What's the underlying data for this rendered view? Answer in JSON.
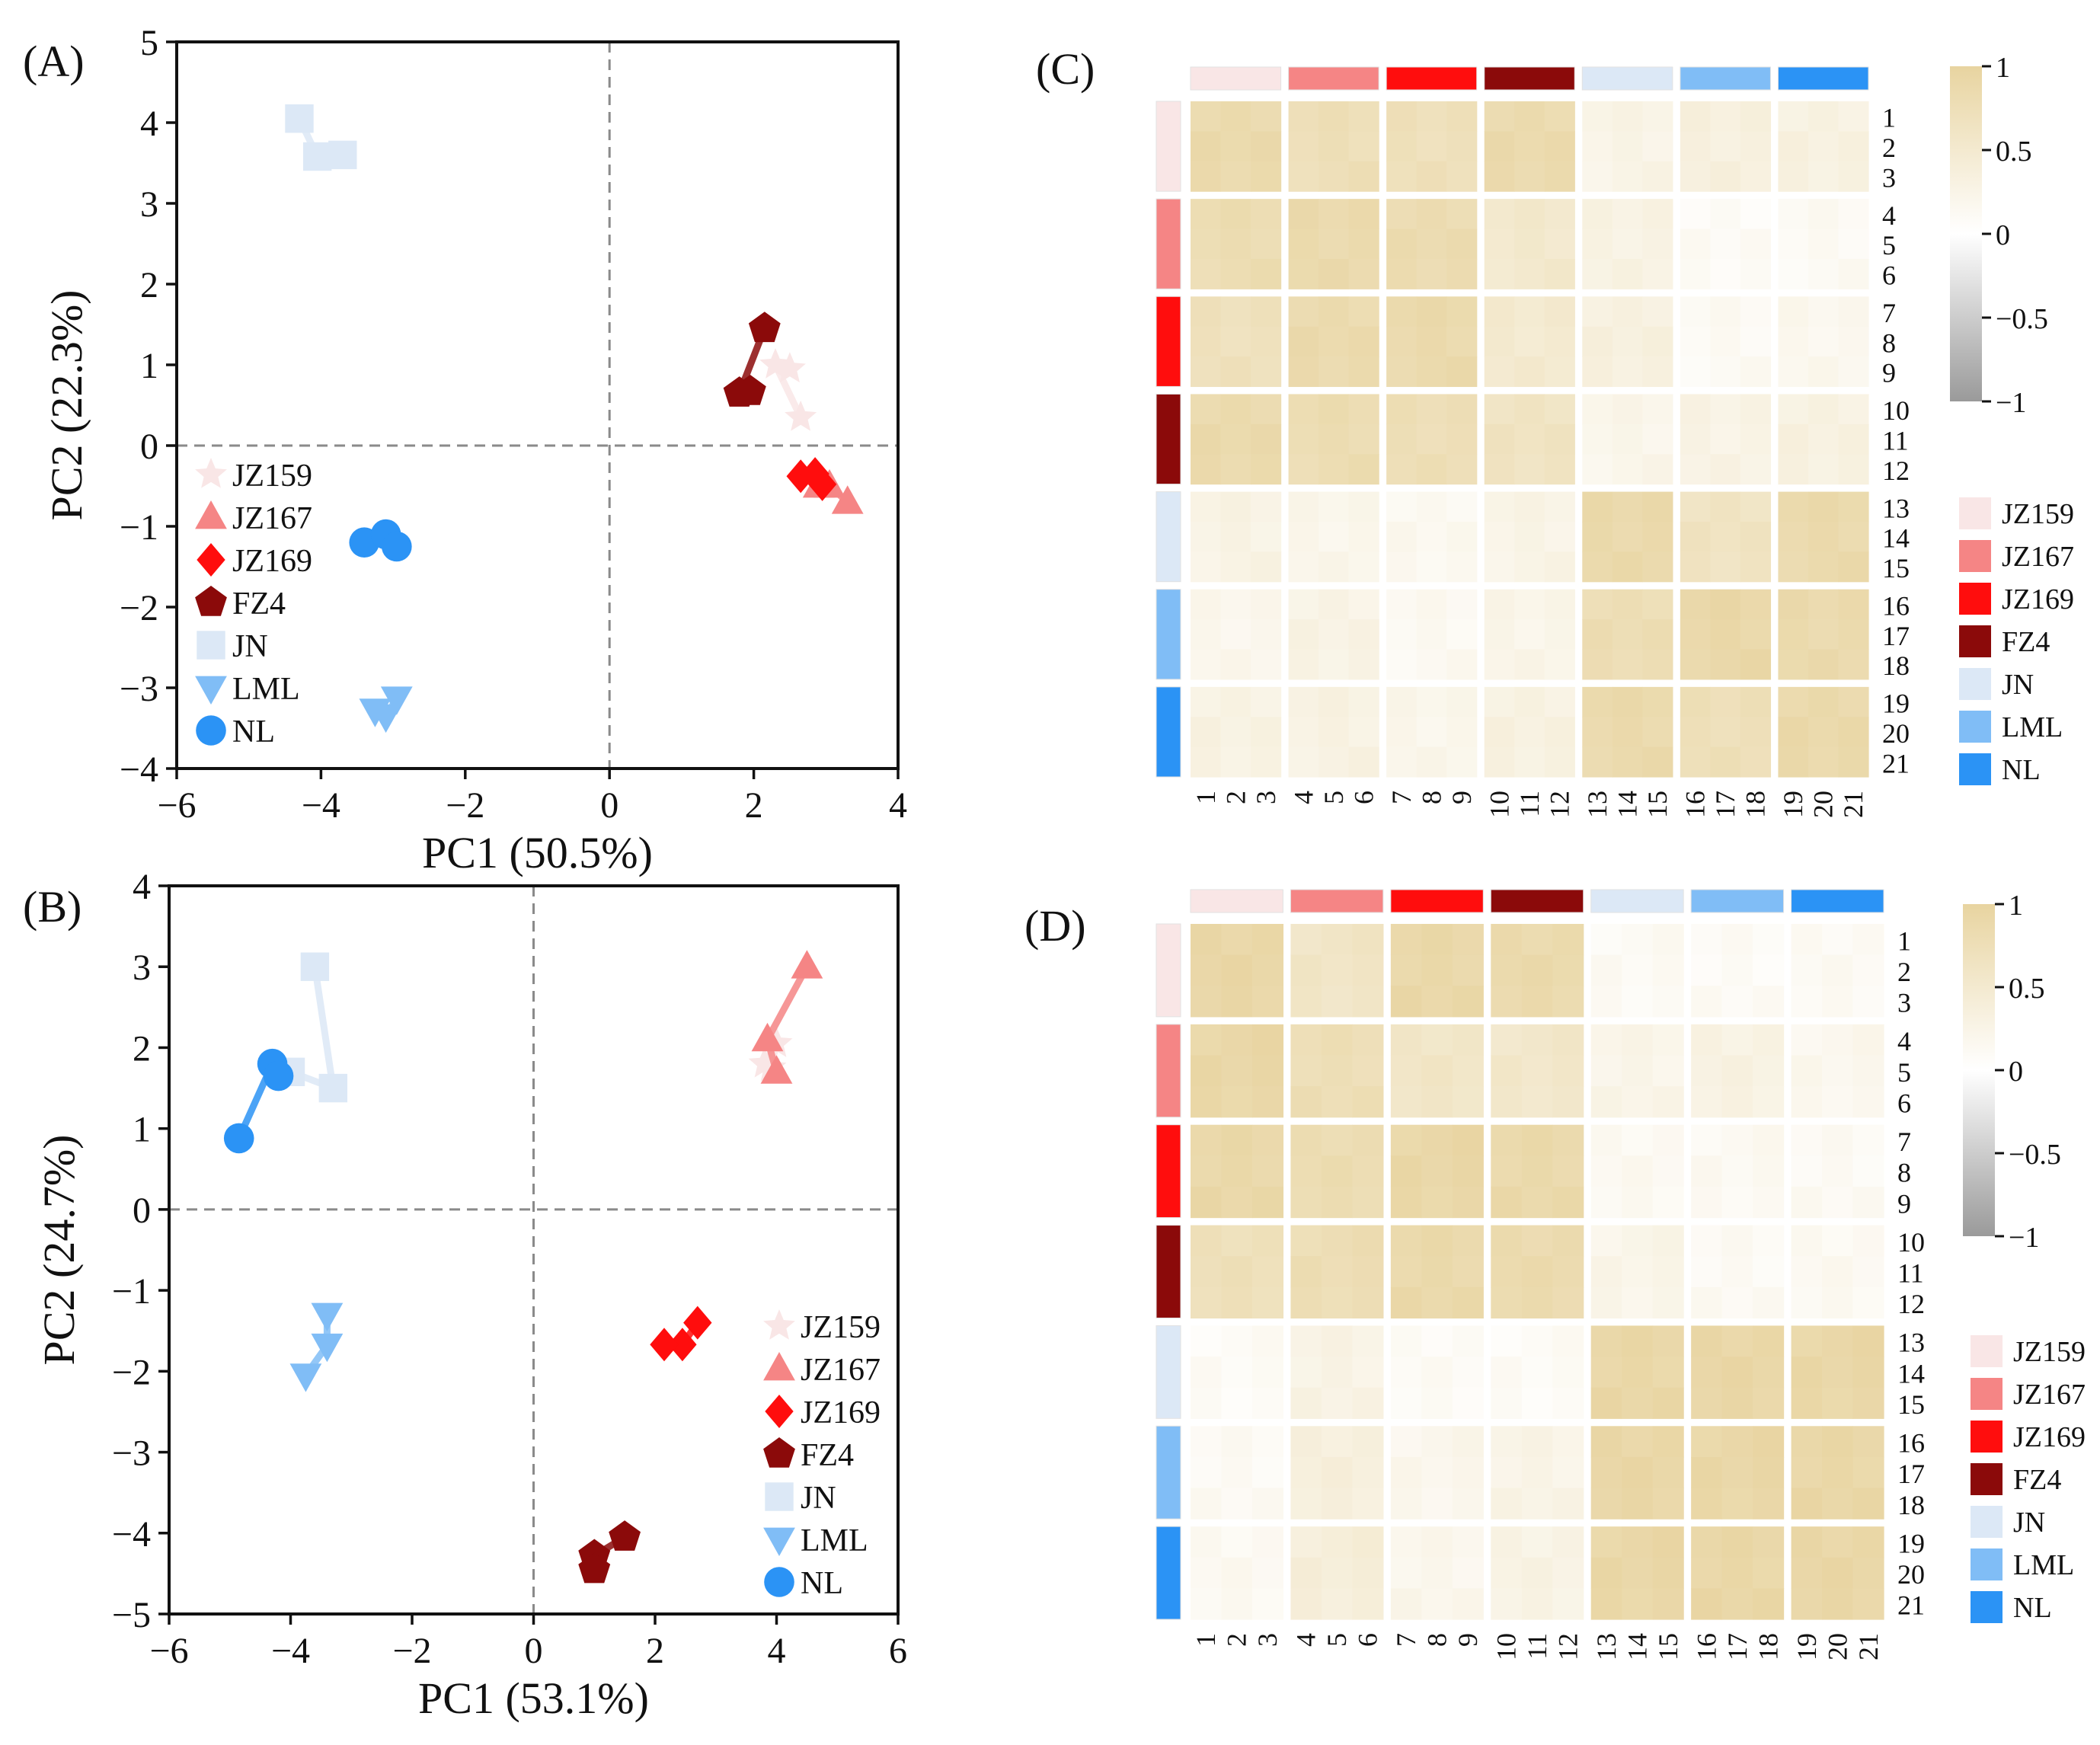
{
  "colors": {
    "JZ159": "#f9e6e6",
    "JZ167": "#f58585",
    "JZ169": "#ff0d0d",
    "FZ4": "#8b0a0a",
    "JN": "#dce8f6",
    "LML": "#80bdf6",
    "NL": "#2b93f5",
    "heat_high": "#e8d4a0",
    "heat_mid": "#ffffff",
    "heat_low": "#9a9a9a"
  },
  "groups": [
    "JZ159",
    "JZ167",
    "JZ169",
    "FZ4",
    "JN",
    "LML",
    "NL"
  ],
  "markers": {
    "JZ159": "star-icon",
    "JZ167": "triangle-icon",
    "JZ169": "diamond-icon",
    "FZ4": "pentagon-icon",
    "JN": "square-icon",
    "LML": "triangle-down-icon",
    "NL": "circle-icon"
  },
  "chart_data": [
    {
      "id": "A",
      "panel_label": "(A)",
      "type": "scatter",
      "xlabel": "PC1 (50.5%)",
      "ylabel": "PC2 (22.3%)",
      "xlim": [
        -6,
        4
      ],
      "ylim": [
        -4,
        5
      ],
      "xticks": [
        -6,
        -4,
        -2,
        0,
        2,
        4
      ],
      "yticks": [
        -4,
        -3,
        -2,
        -1,
        0,
        1,
        2,
        3,
        4,
        5
      ],
      "xtick_labels": [
        "−6",
        "−4",
        "−2",
        "0",
        "2",
        "4"
      ],
      "ytick_labels": [
        "−4",
        "−3",
        "−2",
        "−1",
        "0",
        "1",
        "2",
        "3",
        "4",
        "5"
      ],
      "reference_lines": {
        "x": 0,
        "y": 0
      },
      "legend_position": "lower-left",
      "series": [
        {
          "name": "JZ159",
          "points": [
            [
              2.5,
              0.95
            ],
            [
              2.3,
              1.0
            ],
            [
              2.65,
              0.35
            ]
          ]
        },
        {
          "name": "JZ167",
          "points": [
            [
              2.9,
              -0.5
            ],
            [
              3.05,
              -0.5
            ],
            [
              3.3,
              -0.7
            ]
          ]
        },
        {
          "name": "JZ169",
          "points": [
            [
              2.65,
              -0.38
            ],
            [
              2.85,
              -0.35
            ],
            [
              2.95,
              -0.48
            ]
          ]
        },
        {
          "name": "FZ4",
          "points": [
            [
              2.15,
              1.45
            ],
            [
              1.8,
              0.65
            ],
            [
              1.95,
              0.67
            ]
          ]
        },
        {
          "name": "JN",
          "points": [
            [
              -4.3,
              4.05
            ],
            [
              -4.05,
              3.58
            ],
            [
              -3.7,
              3.6
            ]
          ]
        },
        {
          "name": "LML",
          "points": [
            [
              -2.95,
              -3.13
            ],
            [
              -3.1,
              -3.35
            ],
            [
              -3.25,
              -3.28
            ]
          ]
        },
        {
          "name": "NL",
          "points": [
            [
              -3.4,
              -1.2
            ],
            [
              -3.1,
              -1.1
            ],
            [
              -2.95,
              -1.25
            ]
          ]
        }
      ]
    },
    {
      "id": "B",
      "panel_label": "(B)",
      "type": "scatter",
      "xlabel": "PC1 (53.1%)",
      "ylabel": "PC2 (24.7%)",
      "xlim": [
        -6,
        6
      ],
      "ylim": [
        -5,
        4
      ],
      "xticks": [
        -6,
        -4,
        -2,
        0,
        2,
        4,
        6
      ],
      "yticks": [
        -5,
        -4,
        -3,
        -2,
        -1,
        0,
        1,
        2,
        3,
        4
      ],
      "xtick_labels": [
        "−6",
        "−4",
        "−2",
        "0",
        "2",
        "4",
        "6"
      ],
      "ytick_labels": [
        "−5",
        "−4",
        "−3",
        "−2",
        "−1",
        "0",
        "1",
        "2",
        "3",
        "4"
      ],
      "reference_lines": {
        "x": 0,
        "y": 0
      },
      "legend_position": "lower-right",
      "series": [
        {
          "name": "JZ159",
          "points": [
            [
              3.8,
              1.8
            ],
            [
              4.0,
              2.05
            ],
            [
              3.9,
              1.75
            ]
          ]
        },
        {
          "name": "JZ167",
          "points": [
            [
              4.5,
              3.0
            ],
            [
              3.85,
              2.1
            ],
            [
              4.0,
              1.7
            ]
          ]
        },
        {
          "name": "JZ169",
          "points": [
            [
              2.7,
              -1.4
            ],
            [
              2.45,
              -1.67
            ],
            [
              2.15,
              -1.67
            ]
          ]
        },
        {
          "name": "FZ4",
          "points": [
            [
              1.5,
              -4.05
            ],
            [
              1.0,
              -4.28
            ],
            [
              1.0,
              -4.45
            ]
          ]
        },
        {
          "name": "JN",
          "points": [
            [
              -3.6,
              3.0
            ],
            [
              -3.3,
              1.5
            ],
            [
              -4.0,
              1.7
            ]
          ]
        },
        {
          "name": "LML",
          "points": [
            [
              -3.4,
              -1.3
            ],
            [
              -3.4,
              -1.68
            ],
            [
              -3.75,
              -2.05
            ]
          ]
        },
        {
          "name": "NL",
          "points": [
            [
              -4.85,
              0.88
            ],
            [
              -4.3,
              1.8
            ],
            [
              -4.2,
              1.65
            ]
          ]
        }
      ]
    },
    {
      "id": "C",
      "panel_label": "(C)",
      "type": "heatmap",
      "row_labels": [
        "1",
        "2",
        "3",
        "4",
        "5",
        "6",
        "7",
        "8",
        "9",
        "10",
        "11",
        "12",
        "13",
        "14",
        "15",
        "16",
        "17",
        "18",
        "19",
        "20",
        "21"
      ],
      "col_labels": [
        "1",
        "2",
        "3",
        "4",
        "5",
        "6",
        "7",
        "8",
        "9",
        "10",
        "11",
        "12",
        "13",
        "14",
        "15",
        "16",
        "17",
        "18",
        "19",
        "20",
        "21"
      ],
      "colorbar": {
        "min": -1,
        "max": 1,
        "ticks": [
          1,
          0.5,
          0,
          -0.5,
          -1
        ],
        "tick_labels": [
          "1",
          "0.5",
          "0",
          "−0.5",
          "−1"
        ]
      },
      "block_values": [
        [
          0.86,
          0.74,
          0.72,
          0.85,
          0.26,
          0.35,
          0.32
        ],
        [
          0.8,
          0.86,
          0.82,
          0.52,
          0.3,
          0.1,
          0.12
        ],
        [
          0.7,
          0.85,
          0.86,
          0.5,
          0.34,
          0.12,
          0.18
        ],
        [
          0.86,
          0.8,
          0.76,
          0.64,
          0.22,
          0.28,
          0.32
        ],
        [
          0.28,
          0.22,
          0.16,
          0.26,
          0.88,
          0.64,
          0.86
        ],
        [
          0.2,
          0.28,
          0.14,
          0.24,
          0.78,
          0.9,
          0.86
        ],
        [
          0.3,
          0.3,
          0.22,
          0.32,
          0.86,
          0.74,
          0.88
        ]
      ]
    },
    {
      "id": "D",
      "panel_label": "(D)",
      "type": "heatmap",
      "row_labels": [
        "1",
        "2",
        "3",
        "4",
        "5",
        "6",
        "7",
        "8",
        "9",
        "10",
        "11",
        "12",
        "13",
        "14",
        "15",
        "16",
        "17",
        "18",
        "19",
        "20",
        "21"
      ],
      "col_labels": [
        "1",
        "2",
        "3",
        "4",
        "5",
        "6",
        "7",
        "8",
        "9",
        "10",
        "11",
        "12",
        "13",
        "14",
        "15",
        "16",
        "17",
        "18",
        "19",
        "20",
        "21"
      ],
      "colorbar": {
        "min": -1,
        "max": 1,
        "ticks": [
          1,
          0.5,
          0,
          -0.5,
          -1
        ],
        "tick_labels": [
          "1",
          "0.5",
          "0",
          "−0.5",
          "−1"
        ]
      },
      "block_values": [
        [
          0.92,
          0.6,
          0.9,
          0.86,
          0.12,
          0.1,
          0.12
        ],
        [
          0.92,
          0.76,
          0.58,
          0.55,
          0.24,
          0.3,
          0.18
        ],
        [
          0.9,
          0.8,
          0.92,
          0.88,
          0.14,
          0.14,
          0.12
        ],
        [
          0.72,
          0.78,
          0.88,
          0.84,
          0.24,
          0.12,
          0.14
        ],
        [
          0.1,
          0.28,
          0.1,
          0.1,
          0.92,
          0.92,
          0.92
        ],
        [
          0.12,
          0.36,
          0.2,
          0.26,
          0.92,
          0.92,
          0.92
        ],
        [
          0.14,
          0.4,
          0.2,
          0.28,
          0.92,
          0.92,
          0.92
        ]
      ]
    }
  ]
}
